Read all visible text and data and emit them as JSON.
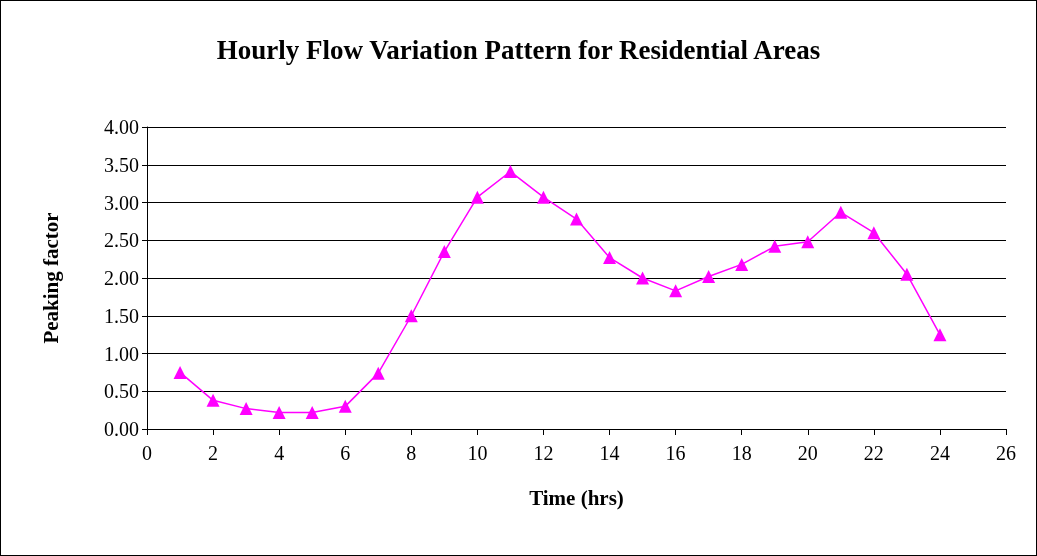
{
  "chart_data": {
    "type": "line",
    "title": "Hourly Flow Variation Pattern for Residential Areas",
    "xlabel": "Time (hrs)",
    "ylabel": "Peaking factor",
    "x": [
      1,
      2,
      3,
      4,
      5,
      6,
      7,
      8,
      9,
      10,
      11,
      12,
      13,
      14,
      15,
      16,
      17,
      18,
      19,
      20,
      21,
      22,
      23,
      24
    ],
    "series": [
      {
        "color": "#ff00ff",
        "values": [
          0.75,
          0.38,
          0.27,
          0.22,
          0.22,
          0.3,
          0.74,
          1.5,
          2.35,
          3.07,
          3.41,
          3.07,
          2.78,
          2.27,
          2.0,
          1.83,
          2.02,
          2.18,
          2.42,
          2.48,
          2.87,
          2.6,
          2.05,
          1.25
        ]
      }
    ],
    "xlim": [
      0,
      26
    ],
    "xticks": [
      0,
      2,
      4,
      6,
      8,
      10,
      12,
      14,
      16,
      18,
      20,
      22,
      24,
      26
    ],
    "ylim": [
      0,
      4
    ],
    "yticks": [
      {
        "value": 0,
        "label": "0.00"
      },
      {
        "value": 0.5,
        "label": "0.50"
      },
      {
        "value": 1,
        "label": "1.00"
      },
      {
        "value": 1.5,
        "label": "1.50"
      },
      {
        "value": 2,
        "label": "2.00"
      },
      {
        "value": 2.5,
        "label": "2.50"
      },
      {
        "value": 3,
        "label": "3.00"
      },
      {
        "value": 3.5,
        "label": "3.50"
      },
      {
        "value": 4,
        "label": "4.00"
      }
    ],
    "grid": "y",
    "marker": "triangle",
    "line_style": "solid"
  }
}
